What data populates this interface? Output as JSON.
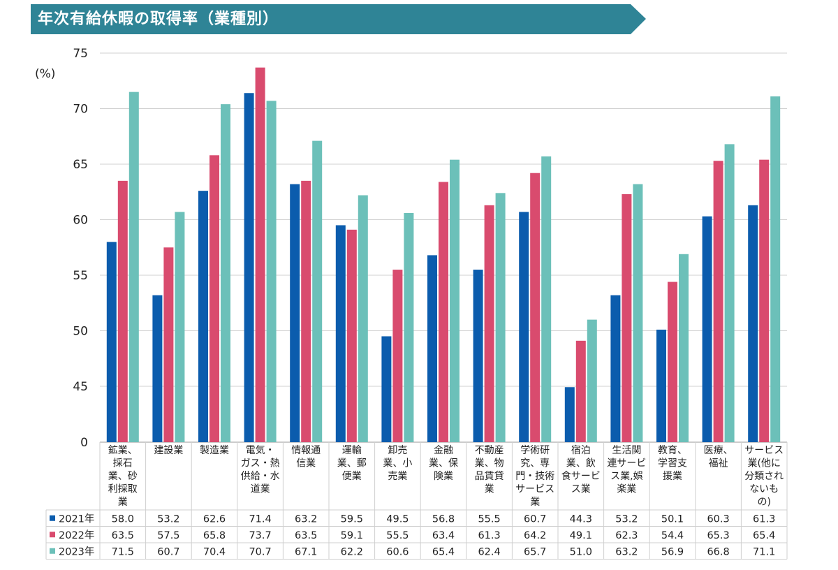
{
  "header": {
    "title": "年次有給休暇の取得率（業種別）"
  },
  "colors": {
    "banner": "#2f8496",
    "s2021": "#0b5cad",
    "s2022": "#d94b6e",
    "s2023": "#6cc0b9",
    "grid": "#d0d0d0"
  },
  "chart_data": {
    "type": "bar",
    "ylabel": "(%)",
    "ylim": [
      0,
      75
    ],
    "yticks": [
      "0",
      "45",
      "50",
      "55",
      "60",
      "65",
      "70",
      "75"
    ],
    "y_axis_break": "0 to 45 compressed",
    "grid": true,
    "categories": [
      [
        "鉱業、",
        "採石",
        "業、砂",
        "利採取",
        "業"
      ],
      [
        "建設業"
      ],
      [
        "製造業"
      ],
      [
        "電気・",
        "ガス・熱",
        "供給・水",
        "道業"
      ],
      [
        "情報通",
        "信業"
      ],
      [
        "運輸",
        "業、郵",
        "便業"
      ],
      [
        "卸売",
        "業、小",
        "売業"
      ],
      [
        "金融",
        "業、保",
        "険業"
      ],
      [
        "不動産",
        "業、物",
        "品賃貸",
        "業"
      ],
      [
        "学術研",
        "究、専",
        "門・技術",
        "サービス",
        "業"
      ],
      [
        "宿泊",
        "業、飲",
        "食サービ",
        "ス業"
      ],
      [
        "生活関",
        "連サービ",
        "ス業,娯",
        "楽業"
      ],
      [
        "教育、",
        "学習支",
        "援業"
      ],
      [
        "医療、",
        "福祉"
      ],
      [
        "サービス",
        "業(他に",
        "分類され",
        "ないも",
        "の)"
      ]
    ],
    "series": [
      {
        "name": "2021年",
        "values": [
          58.0,
          53.2,
          62.6,
          71.4,
          63.2,
          59.5,
          49.5,
          56.8,
          55.5,
          60.7,
          44.3,
          53.2,
          50.1,
          60.3,
          61.3
        ]
      },
      {
        "name": "2022年",
        "values": [
          63.5,
          57.5,
          65.8,
          73.7,
          63.5,
          59.1,
          55.5,
          63.4,
          61.3,
          64.2,
          49.1,
          62.3,
          54.4,
          65.3,
          65.4
        ]
      },
      {
        "name": "2023年",
        "values": [
          71.5,
          60.7,
          70.4,
          70.7,
          67.1,
          62.2,
          60.6,
          65.4,
          62.4,
          65.7,
          51.0,
          63.2,
          56.9,
          66.8,
          71.1
        ]
      }
    ],
    "table_values": [
      [
        "58.0",
        "53.2",
        "62.6",
        "71.4",
        "63.2",
        "59.5",
        "49.5",
        "56.8",
        "55.5",
        "60.7",
        "44.3",
        "53.2",
        "50.1",
        "60.3",
        "61.3"
      ],
      [
        "63.5",
        "57.5",
        "65.8",
        "73.7",
        "63.5",
        "59.1",
        "55.5",
        "63.4",
        "61.3",
        "64.2",
        "49.1",
        "62.3",
        "54.4",
        "65.3",
        "65.4"
      ],
      [
        "71.5",
        "60.7",
        "70.4",
        "70.7",
        "67.1",
        "62.2",
        "60.6",
        "65.4",
        "62.4",
        "65.7",
        "51.0",
        "63.2",
        "56.9",
        "66.8",
        "71.1"
      ]
    ]
  }
}
